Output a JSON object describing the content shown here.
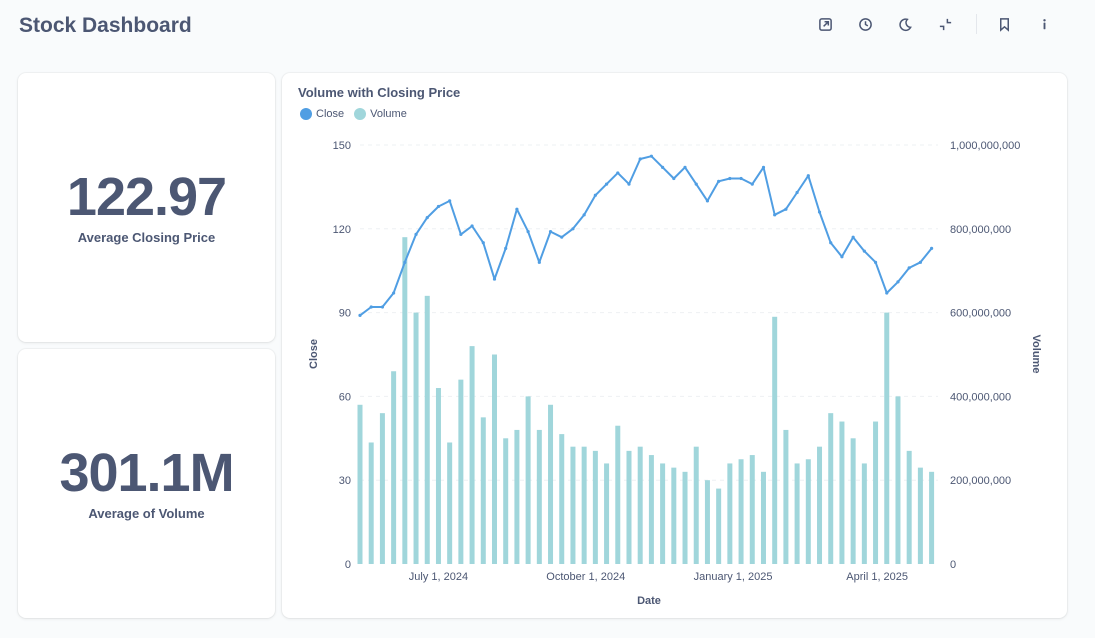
{
  "header": {
    "title": "Stock Dashboard"
  },
  "toolbar": {
    "icons": [
      "share-icon",
      "clock-icon",
      "moon-icon",
      "collapse-icon",
      "bookmark-icon",
      "info-icon"
    ]
  },
  "cards": {
    "avg_close": {
      "value": "122.97",
      "label": "Average Closing Price"
    },
    "avg_volume": {
      "value": "301.1M",
      "label": "Average of Volume"
    }
  },
  "chart": {
    "title": "Volume with Closing Price",
    "legend": [
      {
        "name": "Close",
        "color": "#509ee3"
      },
      {
        "name": "Volume",
        "color": "#a0d6db"
      }
    ],
    "xlabel": "Date",
    "ylabel_left": "Close",
    "ylabel_right": "Volume",
    "left_ticks": [
      "0",
      "30",
      "60",
      "90",
      "120",
      "150"
    ],
    "right_ticks": [
      "0",
      "200,000,000",
      "400,000,000",
      "600,000,000",
      "800,000,000",
      "1,000,000,000"
    ],
    "x_ticks": [
      "July 1, 2024",
      "October 1, 2024",
      "January 1, 2025",
      "April 1, 2025"
    ]
  },
  "chart_data": {
    "type": "line",
    "title": "Volume with Closing Price",
    "xlabel": "Date",
    "ylabel": "Close",
    "y2label": "Volume",
    "ylim": [
      0,
      150
    ],
    "y2lim": [
      0,
      1000000000
    ],
    "x_range": [
      "2024-05-13",
      "2025-05-09"
    ],
    "grid": true,
    "legend_position": "top-left",
    "series": [
      {
        "name": "Close",
        "axis": "left",
        "type": "line",
        "color": "#509ee3",
        "points": [
          [
            "2024-05-13",
            89
          ],
          [
            "2024-05-20",
            92
          ],
          [
            "2024-05-27",
            92
          ],
          [
            "2024-06-03",
            97
          ],
          [
            "2024-06-10",
            108
          ],
          [
            "2024-06-17",
            118
          ],
          [
            "2024-06-24",
            124
          ],
          [
            "2024-07-01",
            128
          ],
          [
            "2024-07-08",
            130
          ],
          [
            "2024-07-15",
            118
          ],
          [
            "2024-07-22",
            121
          ],
          [
            "2024-07-29",
            115
          ],
          [
            "2024-08-05",
            102
          ],
          [
            "2024-08-12",
            113
          ],
          [
            "2024-08-19",
            127
          ],
          [
            "2024-08-26",
            119
          ],
          [
            "2024-09-02",
            108
          ],
          [
            "2024-09-09",
            119
          ],
          [
            "2024-09-16",
            117
          ],
          [
            "2024-09-23",
            120
          ],
          [
            "2024-09-30",
            125
          ],
          [
            "2024-10-07",
            132
          ],
          [
            "2024-10-14",
            136
          ],
          [
            "2024-10-21",
            140
          ],
          [
            "2024-10-28",
            136
          ],
          [
            "2024-11-04",
            145
          ],
          [
            "2024-11-11",
            146
          ],
          [
            "2024-11-18",
            142
          ],
          [
            "2024-11-25",
            138
          ],
          [
            "2024-12-02",
            142
          ],
          [
            "2024-12-09",
            136
          ],
          [
            "2024-12-16",
            130
          ],
          [
            "2024-12-23",
            137
          ],
          [
            "2024-12-30",
            138
          ],
          [
            "2025-01-06",
            138
          ],
          [
            "2025-01-13",
            136
          ],
          [
            "2025-01-20",
            142
          ],
          [
            "2025-01-27",
            125
          ],
          [
            "2025-02-03",
            127
          ],
          [
            "2025-02-10",
            133
          ],
          [
            "2025-02-17",
            139
          ],
          [
            "2025-02-24",
            126
          ],
          [
            "2025-03-03",
            115
          ],
          [
            "2025-03-10",
            110
          ],
          [
            "2025-03-17",
            117
          ],
          [
            "2025-03-24",
            112
          ],
          [
            "2025-03-31",
            108
          ],
          [
            "2025-04-07",
            97
          ],
          [
            "2025-04-14",
            101
          ],
          [
            "2025-04-21",
            106
          ],
          [
            "2025-04-28",
            108
          ],
          [
            "2025-05-05",
            113
          ]
        ]
      },
      {
        "name": "Volume",
        "axis": "right",
        "type": "bar",
        "color": "#a0d6db",
        "points": [
          [
            "2024-05-13",
            380000000
          ],
          [
            "2024-05-20",
            290000000
          ],
          [
            "2024-05-27",
            360000000
          ],
          [
            "2024-06-03",
            460000000
          ],
          [
            "2024-06-10",
            780000000
          ],
          [
            "2024-06-17",
            600000000
          ],
          [
            "2024-06-24",
            640000000
          ],
          [
            "2024-07-01",
            420000000
          ],
          [
            "2024-07-08",
            290000000
          ],
          [
            "2024-07-15",
            440000000
          ],
          [
            "2024-07-22",
            520000000
          ],
          [
            "2024-07-29",
            350000000
          ],
          [
            "2024-08-05",
            500000000
          ],
          [
            "2024-08-12",
            300000000
          ],
          [
            "2024-08-19",
            320000000
          ],
          [
            "2024-08-26",
            400000000
          ],
          [
            "2024-09-02",
            320000000
          ],
          [
            "2024-09-09",
            380000000
          ],
          [
            "2024-09-16",
            310000000
          ],
          [
            "2024-09-23",
            280000000
          ],
          [
            "2024-09-30",
            280000000
          ],
          [
            "2024-10-07",
            270000000
          ],
          [
            "2024-10-14",
            240000000
          ],
          [
            "2024-10-21",
            330000000
          ],
          [
            "2024-10-28",
            270000000
          ],
          [
            "2024-11-04",
            280000000
          ],
          [
            "2024-11-11",
            260000000
          ],
          [
            "2024-11-18",
            240000000
          ],
          [
            "2024-11-25",
            230000000
          ],
          [
            "2024-12-02",
            220000000
          ],
          [
            "2024-12-09",
            280000000
          ],
          [
            "2024-12-16",
            200000000
          ],
          [
            "2024-12-23",
            180000000
          ],
          [
            "2024-12-30",
            240000000
          ],
          [
            "2025-01-06",
            250000000
          ],
          [
            "2025-01-13",
            260000000
          ],
          [
            "2025-01-20",
            220000000
          ],
          [
            "2025-01-27",
            590000000
          ],
          [
            "2025-02-03",
            320000000
          ],
          [
            "2025-02-10",
            240000000
          ],
          [
            "2025-02-17",
            250000000
          ],
          [
            "2025-02-24",
            280000000
          ],
          [
            "2025-03-03",
            360000000
          ],
          [
            "2025-03-10",
            340000000
          ],
          [
            "2025-03-17",
            300000000
          ],
          [
            "2025-03-24",
            240000000
          ],
          [
            "2025-03-31",
            340000000
          ],
          [
            "2025-04-07",
            600000000
          ],
          [
            "2025-04-14",
            400000000
          ],
          [
            "2025-04-21",
            270000000
          ],
          [
            "2025-04-28",
            230000000
          ],
          [
            "2025-05-05",
            220000000
          ]
        ]
      }
    ]
  }
}
